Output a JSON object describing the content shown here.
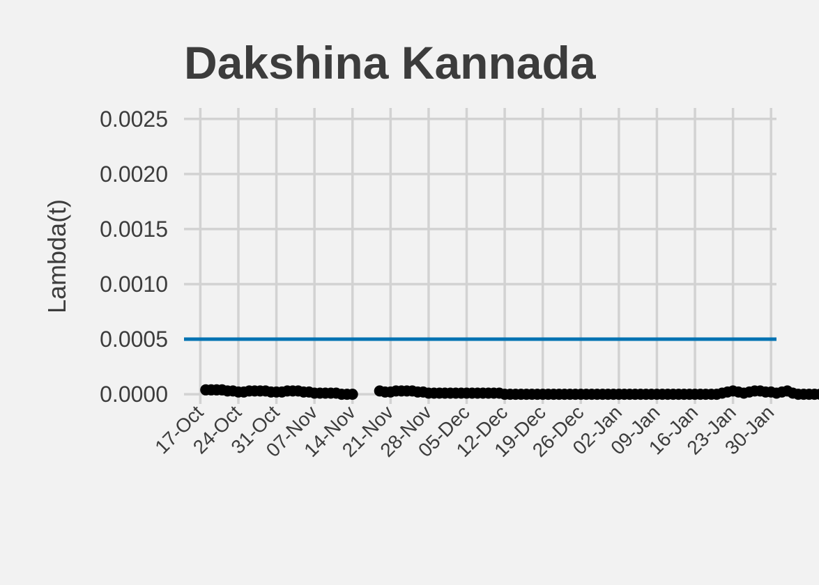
{
  "chart_data": {
    "type": "line",
    "title": "Dakshina Kannada",
    "xlabel": "",
    "ylabel": "Lambda(t)",
    "ylim": [
      -5e-05,
      0.0026
    ],
    "xlim": [
      "2020-10-14",
      "2021-01-31"
    ],
    "grid": true,
    "y_ticks": [
      0.0,
      0.0005,
      0.001,
      0.0015,
      0.002,
      0.0025
    ],
    "y_tick_labels": [
      "0.0000",
      "0.0005",
      "0.0010",
      "0.0015",
      "0.0020",
      "0.0025"
    ],
    "x_ticks": [
      "2020-10-17",
      "2020-10-24",
      "2020-10-31",
      "2020-11-07",
      "2020-11-14",
      "2020-11-21",
      "2020-11-28",
      "2020-12-05",
      "2020-12-12",
      "2020-12-19",
      "2020-12-26",
      "2021-01-02",
      "2021-01-09",
      "2021-01-16",
      "2021-01-23",
      "2021-01-30"
    ],
    "x_tick_labels": [
      "17-Oct",
      "24-Oct",
      "31-Oct",
      "07-Nov",
      "14-Nov",
      "21-Nov",
      "28-Nov",
      "05-Dec",
      "12-Dec",
      "19-Dec",
      "26-Dec",
      "02-Jan",
      "09-Jan",
      "16-Jan",
      "23-Jan",
      "30-Jan"
    ],
    "reference_line": {
      "y": 0.0005,
      "color": "#0072b2"
    },
    "series_color": "#000000",
    "series": [
      {
        "segments": [
          {
            "start": "2020-10-18",
            "values": [
              4e-05,
              4e-05,
              4e-05,
              4e-05,
              3e-05,
              3e-05,
              2e-05,
              2e-05,
              3e-05,
              3e-05,
              3e-05,
              3e-05,
              2e-05,
              2e-05,
              2e-05,
              3e-05,
              3e-05,
              3e-05,
              2e-05,
              2e-05,
              1e-05,
              1e-05,
              1e-05,
              1e-05,
              1e-05,
              0.0,
              0.0,
              0.0
            ]
          },
          {
            "start": "2020-11-19",
            "values": [
              3e-05,
              2e-05,
              2e-05,
              3e-05,
              3e-05,
              3e-05,
              3e-05,
              2e-05,
              2e-05,
              1e-05,
              1e-05,
              1e-05,
              1e-05,
              1e-05,
              1e-05,
              1e-05,
              1e-05,
              1e-05,
              1e-05,
              1e-05,
              1e-05,
              1e-05,
              1e-05,
              0.0,
              0.0,
              0.0,
              0.0,
              0.0,
              0.0,
              0.0,
              0.0,
              0.0,
              0.0,
              0.0,
              0.0,
              0.0,
              0.0,
              0.0,
              0.0,
              0.0,
              0.0,
              0.0,
              0.0,
              0.0,
              0.0,
              0.0,
              0.0,
              0.0,
              0.0,
              0.0,
              0.0,
              0.0,
              0.0,
              0.0,
              0.0,
              0.0,
              0.0,
              0.0,
              0.0,
              0.0,
              0.0,
              0.0,
              0.0,
              1e-05,
              2e-05,
              3e-05,
              2e-05,
              1e-05,
              2e-05,
              3e-05,
              3e-05,
              2e-05,
              2e-05,
              1e-05,
              2e-05,
              3e-05,
              1e-05,
              0.0,
              0.0,
              0.0,
              0.0,
              0.0,
              0.0,
              0.0,
              0.0,
              0.0,
              0.0,
              0.0,
              0.0,
              0.0,
              0.0,
              0.0,
              0.0,
              0.0,
              0.0,
              0.0,
              0.0,
              0.0,
              0.0,
              0.0,
              0.0,
              0.0,
              0.0,
              0.0,
              0.0,
              0.0,
              0.0,
              0.0,
              0.0,
              0.0,
              0.0,
              0.0,
              0.0,
              0.0,
              0.0,
              0.0,
              0.0,
              0.0,
              0.0,
              0.0,
              0.0,
              0.0,
              0.0,
              0.0
            ]
          }
        ]
      }
    ]
  }
}
